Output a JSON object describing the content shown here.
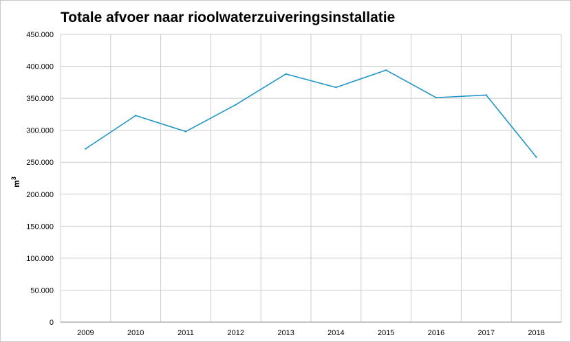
{
  "chart_data": {
    "type": "line",
    "title": "Totale afvoer naar rioolwaterzuiveringsinstallatie",
    "xlabel": "",
    "ylabel_base": "m",
    "ylabel_sup": "3",
    "categories": [
      "2009",
      "2010",
      "2011",
      "2012",
      "2013",
      "2014",
      "2015",
      "2016",
      "2017",
      "2018"
    ],
    "series": [
      {
        "values": [
          271000,
          323000,
          298000,
          340000,
          388000,
          367000,
          394000,
          351000,
          355000,
          258000
        ],
        "color": "#1f95c6"
      }
    ],
    "ylim": [
      0,
      450000
    ],
    "yticks": [
      "0",
      "50.000",
      "100.000",
      "150.000",
      "200.000",
      "250.000",
      "300.000",
      "350.000",
      "400.000",
      "450.000"
    ],
    "grid": true,
    "legend": "none"
  }
}
